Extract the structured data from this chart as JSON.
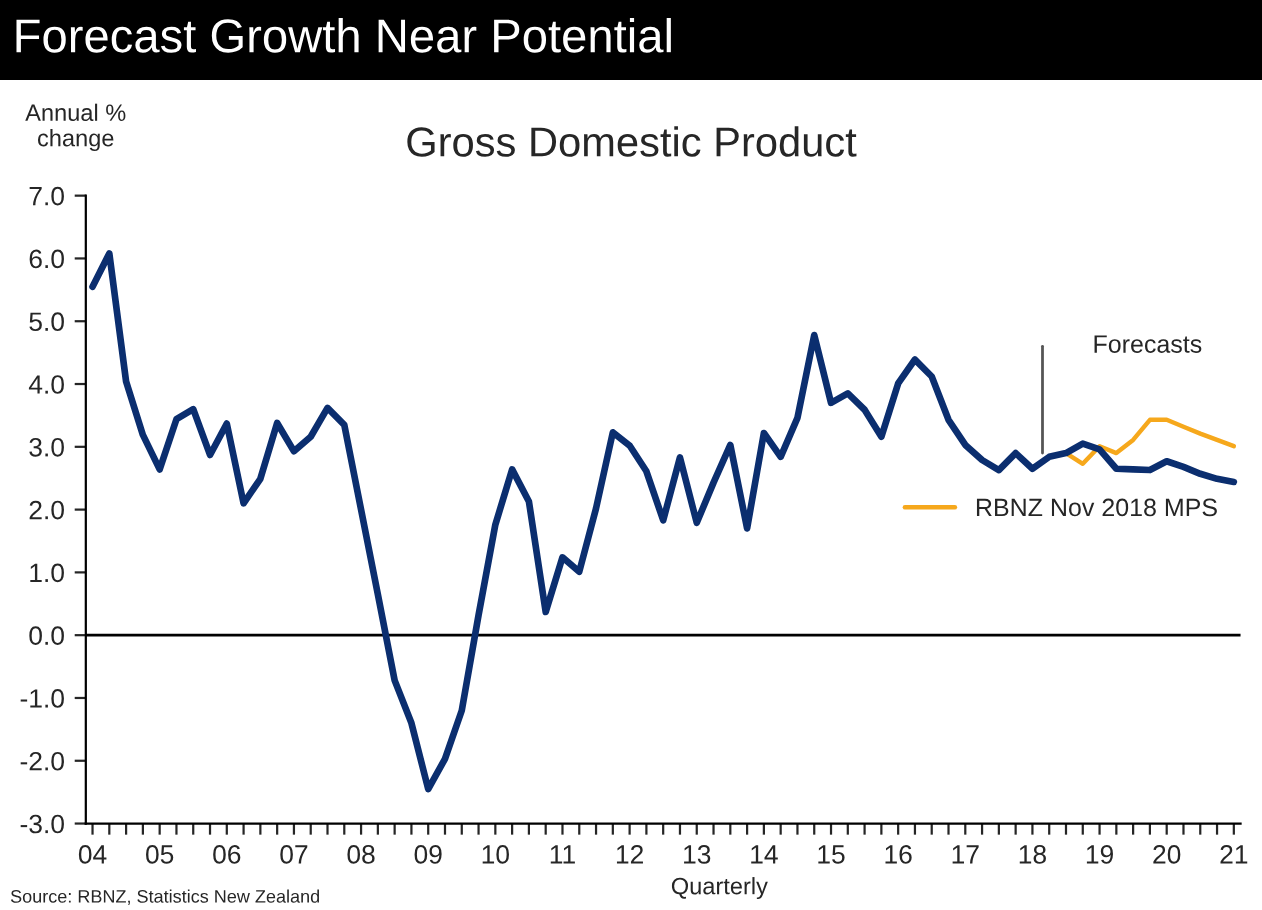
{
  "chart_data": {
    "type": "line",
    "title": "Forecast Growth Near Potential",
    "subtitle": "Gross Domestic Product",
    "ylabel": "Annual %\nchange",
    "xlabel": "Quarterly",
    "annotations": [
      "Source: RBNZ, Statistics New Zealand"
    ],
    "series": [
      {
        "color": "#0b2e6f",
        "x": [
          2004.0,
          2004.25,
          2004.5,
          2004.75,
          2005.0,
          2005.25,
          2005.5,
          2005.75,
          2006.0,
          2006.25,
          2006.5,
          2006.75,
          2007.0,
          2007.25,
          2007.5,
          2007.75,
          2008.0,
          2008.25,
          2008.5,
          2008.75,
          2009.0,
          2009.25,
          2009.5,
          2009.75,
          2010.0,
          2010.25,
          2010.5,
          2010.75,
          2011.0,
          2011.25,
          2011.5,
          2011.75,
          2012.0,
          2012.25,
          2012.5,
          2012.75,
          2013.0,
          2013.25,
          2013.5,
          2013.75,
          2014.0,
          2014.25,
          2014.5,
          2014.75,
          2015.0,
          2015.25,
          2015.5,
          2015.75,
          2016.0,
          2016.25,
          2016.5,
          2016.75,
          2017.0,
          2017.25,
          2017.5,
          2017.75,
          2018.0,
          2018.25,
          2018.5,
          2018.75,
          2019.0,
          2019.25,
          2019.5,
          2019.75,
          2020.0,
          2020.25,
          2020.5,
          2020.75,
          2021.0
        ],
        "values": [
          5.55,
          6.08,
          4.04,
          3.19,
          2.64,
          3.44,
          3.6,
          2.87,
          3.37,
          2.1,
          2.49,
          3.38,
          2.93,
          3.16,
          3.62,
          3.35,
          2.0,
          0.65,
          -0.72,
          -1.4,
          -2.45,
          -1.97,
          -1.2,
          0.32,
          1.76,
          2.64,
          2.13,
          0.37,
          1.24,
          1.01,
          2.02,
          3.23,
          3.02,
          2.61,
          1.83,
          2.83,
          1.79,
          2.43,
          3.03,
          1.7,
          3.22,
          2.84,
          3.46,
          4.78,
          3.7,
          3.85,
          3.59,
          3.16,
          4.01,
          4.39,
          4.12,
          3.43,
          3.03,
          2.79,
          2.63,
          2.9,
          2.65,
          2.84,
          2.9,
          3.05,
          2.96,
          2.65,
          2.64,
          2.63,
          2.77,
          2.68,
          2.57,
          2.49,
          2.44
        ]
      },
      {
        "name": "RBNZ Nov 2018 MPS",
        "color": "#f6a81c",
        "x": [
          2018.25,
          2018.5,
          2018.75,
          2019.0,
          2019.25,
          2019.5,
          2019.75,
          2020.0,
          2020.25,
          2020.5,
          2020.75,
          2021.0
        ],
        "values": [
          2.84,
          2.9,
          2.73,
          3.01,
          2.9,
          3.11,
          3.43,
          3.43,
          3.32,
          3.21,
          3.11,
          3.01
        ]
      }
    ],
    "xlim": [
      2003.9,
      2021.1
    ],
    "xticks": [
      {
        "value": 2004,
        "label": "04"
      },
      {
        "value": 2004.25,
        "label": null
      },
      {
        "value": 2004.5,
        "label": null
      },
      {
        "value": 2004.75,
        "label": null
      },
      {
        "value": 2005,
        "label": "05"
      },
      {
        "value": 2005.25,
        "label": null
      },
      {
        "value": 2005.5,
        "label": null
      },
      {
        "value": 2005.75,
        "label": null
      },
      {
        "value": 2006,
        "label": "06"
      },
      {
        "value": 2006.25,
        "label": null
      },
      {
        "value": 2006.5,
        "label": null
      },
      {
        "value": 2006.75,
        "label": null
      },
      {
        "value": 2007,
        "label": "07"
      },
      {
        "value": 2007.25,
        "label": null
      },
      {
        "value": 2007.5,
        "label": null
      },
      {
        "value": 2007.75,
        "label": null
      },
      {
        "value": 2008,
        "label": "08"
      },
      {
        "value": 2008.25,
        "label": null
      },
      {
        "value": 2008.5,
        "label": null
      },
      {
        "value": 2008.75,
        "label": null
      },
      {
        "value": 2009,
        "label": "09"
      },
      {
        "value": 2009.25,
        "label": null
      },
      {
        "value": 2009.5,
        "label": null
      },
      {
        "value": 2009.75,
        "label": null
      },
      {
        "value": 2010,
        "label": "10"
      },
      {
        "value": 2010.25,
        "label": null
      },
      {
        "value": 2010.5,
        "label": null
      },
      {
        "value": 2010.75,
        "label": null
      },
      {
        "value": 2011,
        "label": "11"
      },
      {
        "value": 2011.25,
        "label": null
      },
      {
        "value": 2011.5,
        "label": null
      },
      {
        "value": 2011.75,
        "label": null
      },
      {
        "value": 2012,
        "label": "12"
      },
      {
        "value": 2012.25,
        "label": null
      },
      {
        "value": 2012.5,
        "label": null
      },
      {
        "value": 2012.75,
        "label": null
      },
      {
        "value": 2013,
        "label": "13"
      },
      {
        "value": 2013.25,
        "label": null
      },
      {
        "value": 2013.5,
        "label": null
      },
      {
        "value": 2013.75,
        "label": null
      },
      {
        "value": 2014,
        "label": "14"
      },
      {
        "value": 2014.25,
        "label": null
      },
      {
        "value": 2014.5,
        "label": null
      },
      {
        "value": 2014.75,
        "label": null
      },
      {
        "value": 2015,
        "label": "15"
      },
      {
        "value": 2015.25,
        "label": null
      },
      {
        "value": 2015.5,
        "label": null
      },
      {
        "value": 2015.75,
        "label": null
      },
      {
        "value": 2016,
        "label": "16"
      },
      {
        "value": 2016.25,
        "label": null
      },
      {
        "value": 2016.5,
        "label": null
      },
      {
        "value": 2016.75,
        "label": null
      },
      {
        "value": 2017,
        "label": "17"
      },
      {
        "value": 2017.25,
        "label": null
      },
      {
        "value": 2017.5,
        "label": null
      },
      {
        "value": 2017.75,
        "label": null
      },
      {
        "value": 2018,
        "label": "18"
      },
      {
        "value": 2018.25,
        "label": null
      },
      {
        "value": 2018.5,
        "label": null
      },
      {
        "value": 2018.75,
        "label": null
      },
      {
        "value": 2019,
        "label": "19"
      },
      {
        "value": 2019.25,
        "label": null
      },
      {
        "value": 2019.5,
        "label": null
      },
      {
        "value": 2019.75,
        "label": null
      },
      {
        "value": 2020,
        "label": "20"
      },
      {
        "value": 2020.25,
        "label": null
      },
      {
        "value": 2020.5,
        "label": null
      },
      {
        "value": 2020.75,
        "label": null
      },
      {
        "value": 2021,
        "label": "21"
      }
    ],
    "ylim": [
      -3,
      7
    ],
    "yticks": [
      {
        "value": -3,
        "label": "-3.0"
      },
      {
        "value": -2,
        "label": "-2.0"
      },
      {
        "value": -1,
        "label": "-1.0"
      },
      {
        "value": 0,
        "label": "0.0"
      },
      {
        "value": 1,
        "label": "1.0"
      },
      {
        "value": 2,
        "label": "2.0"
      },
      {
        "value": 3,
        "label": "3.0"
      },
      {
        "value": 4,
        "label": "4.0"
      },
      {
        "value": 5,
        "label": "5.0"
      },
      {
        "value": 6,
        "label": "6.0"
      },
      {
        "value": 7,
        "label": "7.0"
      }
    ],
    "ref_lines": [
      {
        "axis": "y",
        "value": 0,
        "color": "#000000"
      },
      {
        "axis": "x",
        "value": 2018.15,
        "label": "Forecasts",
        "color": "#555555"
      }
    ],
    "legend": "right",
    "grid": false
  }
}
